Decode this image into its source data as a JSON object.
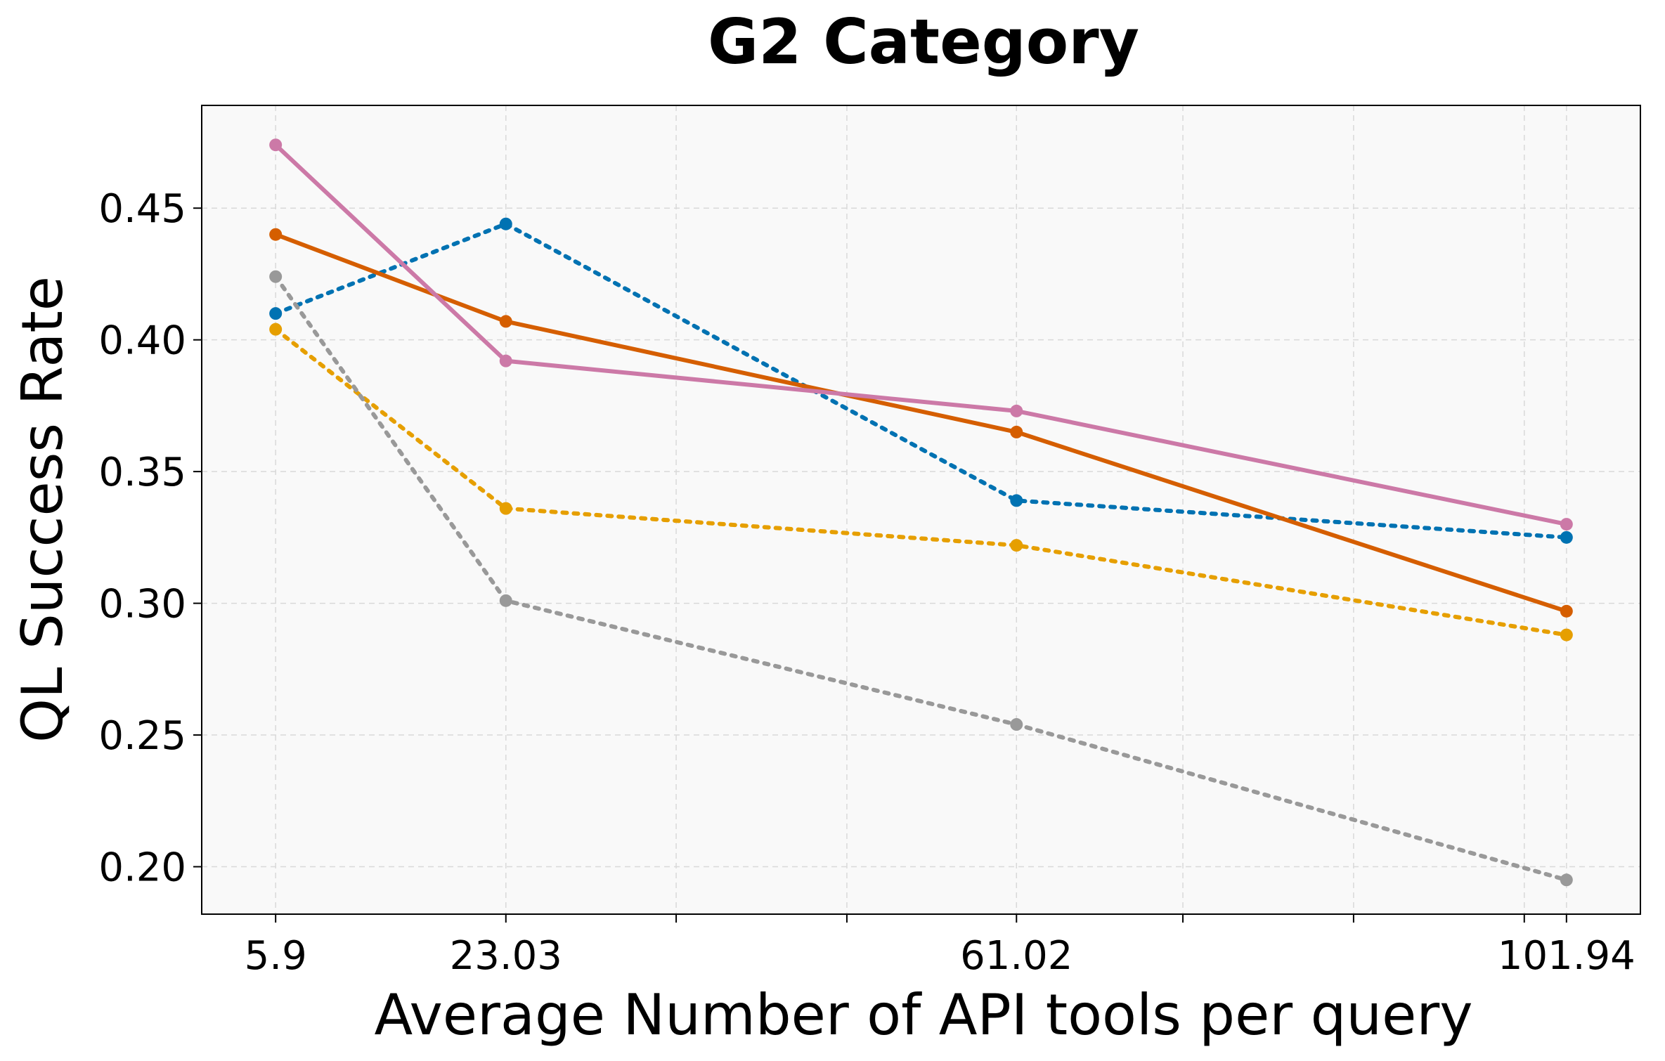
{
  "chart_data": {
    "type": "line",
    "title": "G2 Category",
    "xlabel": "Average Number of API tools per query",
    "ylabel": "QL Success Rate",
    "x": [
      5.9,
      23.03,
      61.02,
      101.94
    ],
    "x_tick_labels": [
      "5.9",
      "23.03",
      "61.02",
      "101.94"
    ],
    "xlim": [
      0.4,
      107.44
    ],
    "x_minor_grid": [
      35.7,
      48.4,
      73.4,
      86.1,
      98.8
    ],
    "ylim": [
      0.182,
      0.489
    ],
    "y_ticks": [
      0.2,
      0.25,
      0.3,
      0.35,
      0.4,
      0.45
    ],
    "y_tick_labels": [
      "0.20",
      "0.25",
      "0.30",
      "0.35",
      "0.40",
      "0.45"
    ],
    "grid": true,
    "background": "#f9f9f9",
    "series": [
      {
        "values": [
          0.41,
          0.444,
          0.339,
          0.325
        ],
        "color": "#0072b2",
        "style": "dotted"
      },
      {
        "values": [
          0.404,
          0.336,
          0.322,
          0.288
        ],
        "color": "#e69f00",
        "style": "dotted"
      },
      {
        "values": [
          0.424,
          0.301,
          0.254,
          0.195
        ],
        "color": "#999999",
        "style": "dotted"
      },
      {
        "values": [
          0.44,
          0.407,
          0.365,
          0.297
        ],
        "color": "#d55e00",
        "style": "solid"
      },
      {
        "values": [
          0.474,
          0.392,
          0.373,
          0.33
        ],
        "color": "#cc79a7",
        "style": "solid"
      }
    ]
  }
}
